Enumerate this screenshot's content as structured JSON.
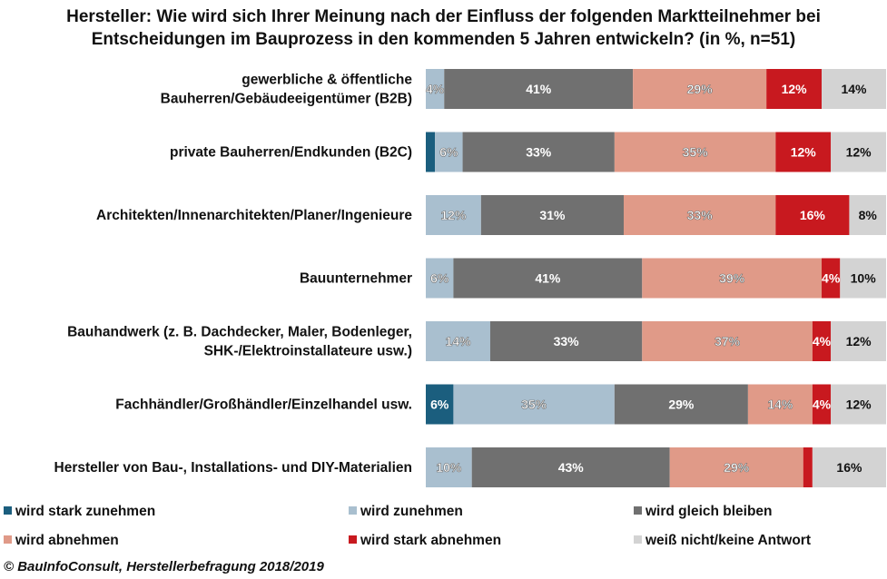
{
  "chart_data": {
    "type": "bar",
    "stacked": true,
    "orientation": "horizontal",
    "title": "Hersteller: Wie wird sich Ihrer Meinung nach der Einfluss der folgenden Marktteilnehmer bei\nEntscheidungen im Bauprozess in den kommenden 5 Jahren entwickeln? (in %, n=51)",
    "categories": [
      "gewerbliche & öffentliche\nBauherren/Gebäudeeigentümer (B2B)",
      "private Bauherren/Endkunden (B2C)",
      "Architekten/Innenarchitekten/Planer/Ingenieure",
      "Bauunternehmer",
      "Bauhandwerk (z. B. Dachdecker, Maler, Bodenleger,\nSHK-/Elektroinstallateure usw.)",
      "Fachhändler/Großhändler/Einzelhandel usw.",
      "Hersteller von Bau-, Installations- und DIY-Materialien"
    ],
    "series": [
      {
        "name": "wird stark zunehmen",
        "color": "#1b5e7e",
        "values": [
          0,
          2,
          0,
          0,
          0,
          6,
          0
        ],
        "labels": [
          "",
          "",
          "",
          "",
          "",
          "6%",
          ""
        ]
      },
      {
        "name": "wird zunehmen",
        "color": "#a9bfcf",
        "values": [
          4,
          6,
          12,
          6,
          14,
          35,
          10
        ],
        "labels": [
          "4%",
          "6%",
          "12%",
          "6%",
          "14%",
          "35%",
          "10%"
        ]
      },
      {
        "name": "wird gleich bleiben",
        "color": "#707070",
        "values": [
          41,
          33,
          31,
          41,
          33,
          29,
          43
        ],
        "labels": [
          "41%",
          "33%",
          "31%",
          "41%",
          "33%",
          "29%",
          "43%"
        ]
      },
      {
        "name": "wird abnehmen",
        "color": "#e09a88",
        "values": [
          29,
          35,
          33,
          39,
          37,
          14,
          29
        ],
        "labels": [
          "29%",
          "35%",
          "33%",
          "39%",
          "37%",
          "14%",
          "29%"
        ]
      },
      {
        "name": "wird stark abnehmen",
        "color": "#c8191f",
        "values": [
          12,
          12,
          16,
          4,
          4,
          4,
          2
        ],
        "labels": [
          "12%",
          "12%",
          "16%",
          "4%",
          "4%",
          "4%",
          ""
        ]
      },
      {
        "name": "weiß nicht/keine Antwort",
        "color": "#d3d3d3",
        "values": [
          14,
          12,
          8,
          10,
          12,
          12,
          16
        ],
        "labels": [
          "14%",
          "12%",
          "8%",
          "10%",
          "12%",
          "12%",
          "16%"
        ]
      }
    ],
    "xlim": [
      0,
      100
    ],
    "grid": false,
    "legend_position": "bottom"
  },
  "source": "© BauInfoConsult, Herstellerbefragung 2018/2019"
}
